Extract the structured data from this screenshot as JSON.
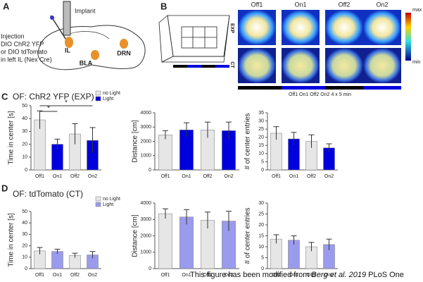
{
  "panels": {
    "a": "A",
    "b": "B",
    "c": "C",
    "d": "D"
  },
  "panel_a": {
    "implant": "Implant",
    "injection": [
      "Injection",
      "DIO ChR2 YFP",
      "or DIO tdTomato",
      "in left IL (Nex Cre)"
    ],
    "il": "IL",
    "bla": "BLA",
    "drn": "DRN"
  },
  "panel_b": {
    "columns": [
      "Off1",
      "On1",
      "Off2",
      "On2"
    ],
    "rows": [
      "EXP",
      "CT"
    ],
    "scale_max": "max",
    "scale_min": "min",
    "timeline": "Off1 On1 Off2 On2 4 x 5 min"
  },
  "chart_data": [
    {
      "type": "bar",
      "title": "OF: ChR2 YFP (EXP)",
      "ylabel": "Time in center [s]",
      "categories": [
        "Off1",
        "On1",
        "Off2",
        "On2"
      ],
      "values": [
        39,
        20,
        28,
        23
      ],
      "errors": [
        7,
        4,
        8,
        10
      ],
      "colors": [
        "#e6e6e6",
        "#0000dd",
        "#e6e6e6",
        "#0000dd"
      ],
      "legend": [
        {
          "name": "no Light",
          "color": "#e6e6e6"
        },
        {
          "name": "Light",
          "color": "#0000dd"
        }
      ],
      "annotations": [
        "*",
        "*"
      ],
      "ylim": [
        0,
        50
      ],
      "yticks": [
        0,
        10,
        20,
        30,
        40,
        50
      ]
    },
    {
      "type": "bar",
      "ylabel": "Distance [cm]",
      "categories": [
        "Off1",
        "On1",
        "Off2",
        "On2"
      ],
      "values": [
        2450,
        2800,
        2800,
        2750
      ],
      "errors": [
        300,
        500,
        550,
        600
      ],
      "colors": [
        "#e6e6e6",
        "#0000dd",
        "#e6e6e6",
        "#0000dd"
      ],
      "ylim": [
        0,
        4000
      ],
      "yticks": [
        0,
        1000,
        2000,
        3000,
        4000
      ]
    },
    {
      "type": "bar",
      "ylabel": "# of center entries",
      "categories": [
        "Off1",
        "On1",
        "Off2",
        "On2"
      ],
      "values": [
        22.5,
        19,
        17.5,
        13.5
      ],
      "errors": [
        4,
        4,
        4,
        2.5
      ],
      "colors": [
        "#e6e6e6",
        "#0000dd",
        "#e6e6e6",
        "#0000dd"
      ],
      "ylim": [
        0,
        35
      ],
      "yticks": [
        0,
        5,
        10,
        15,
        20,
        25,
        30,
        35
      ]
    },
    {
      "type": "bar",
      "title": "OF: tdTomato (CT)",
      "ylabel": "Time in center [s]",
      "categories": [
        "Off1",
        "On1",
        "Off2",
        "On2"
      ],
      "values": [
        15.5,
        15,
        11.5,
        12
      ],
      "errors": [
        3,
        2,
        2,
        3
      ],
      "colors": [
        "#e6e6e6",
        "#9b9bee",
        "#e6e6e6",
        "#9b9bee"
      ],
      "legend": [
        {
          "name": "no Light",
          "color": "#e6e6e6"
        },
        {
          "name": "Light",
          "color": "#9b9bee"
        }
      ],
      "ylim": [
        0,
        50
      ],
      "yticks": [
        0,
        10,
        20,
        30,
        40,
        50
      ]
    },
    {
      "type": "bar",
      "ylabel": "Distance [cm]",
      "categories": [
        "Off1",
        "On1",
        "Off2",
        "On2"
      ],
      "values": [
        3350,
        3150,
        2950,
        2900
      ],
      "errors": [
        300,
        450,
        500,
        600
      ],
      "colors": [
        "#e6e6e6",
        "#9b9bee",
        "#e6e6e6",
        "#9b9bee"
      ],
      "ylim": [
        0,
        4000
      ],
      "yticks": [
        0,
        1000,
        2000,
        3000,
        4000
      ]
    },
    {
      "type": "bar",
      "ylabel": "# of center entries",
      "categories": [
        "Off1",
        "On1",
        "Off2",
        "On2"
      ],
      "values": [
        13.5,
        13,
        10,
        11
      ],
      "errors": [
        2,
        2,
        2,
        2.5
      ],
      "colors": [
        "#e6e6e6",
        "#9b9bee",
        "#e6e6e6",
        "#9b9bee"
      ],
      "ylim": [
        0,
        30
      ],
      "yticks": [
        0,
        5,
        10,
        15,
        20,
        25,
        30
      ]
    }
  ],
  "footer": {
    "prefix": "This figure has been modified from ",
    "citation": "Berg et al. 2019",
    "suffix": " PLoS One"
  }
}
